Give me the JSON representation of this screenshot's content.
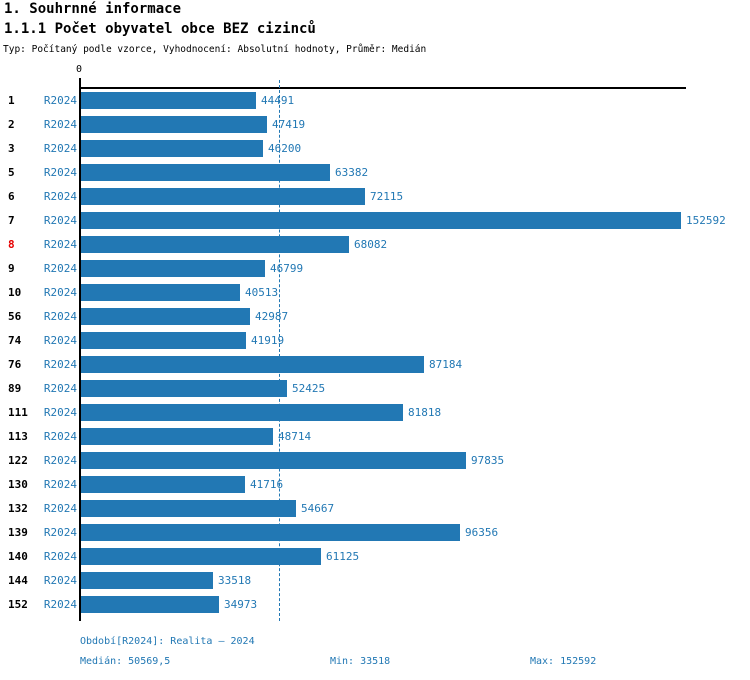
{
  "page": {
    "title": "1. Souhrnné informace",
    "subtitle": "1.1.1 Počet obyvatel obce BEZ cizinců",
    "meta": "Typ: Počítaný podle vzorce, Vyhodnocení: Absolutní hodnoty, Průměr: Medián"
  },
  "chart_data": {
    "type": "bar",
    "orientation": "horizontal",
    "title": "1.1.1 Počet obyvatel obce BEZ cizinců",
    "series_label": "R2024",
    "categories": [
      "1",
      "2",
      "3",
      "5",
      "6",
      "7",
      "8",
      "9",
      "10",
      "56",
      "74",
      "76",
      "89",
      "111",
      "113",
      "122",
      "130",
      "132",
      "139",
      "140",
      "144",
      "152"
    ],
    "values": [
      44491,
      47419,
      46200,
      63382,
      72115,
      152592,
      68082,
      46799,
      40513,
      42987,
      41919,
      87184,
      52425,
      81818,
      48714,
      97835,
      41716,
      54667,
      96356,
      61125,
      33518,
      34973
    ],
    "highlighted_category": "8",
    "median_value": 50569.5,
    "x_axis": {
      "zero_label": "0",
      "xlim": [
        0,
        152592
      ],
      "grid": false
    },
    "legend_position": "none",
    "colors": {
      "bar": "#2278b4",
      "blue_text": "#2278b4",
      "highlight": "#e60000",
      "axis": "#000000"
    }
  },
  "footer": {
    "period": "Období[R2024]: Realita – 2024",
    "median": "Medián: 50569,5",
    "min": "Min: 33518",
    "max": "Max: 152592"
  }
}
